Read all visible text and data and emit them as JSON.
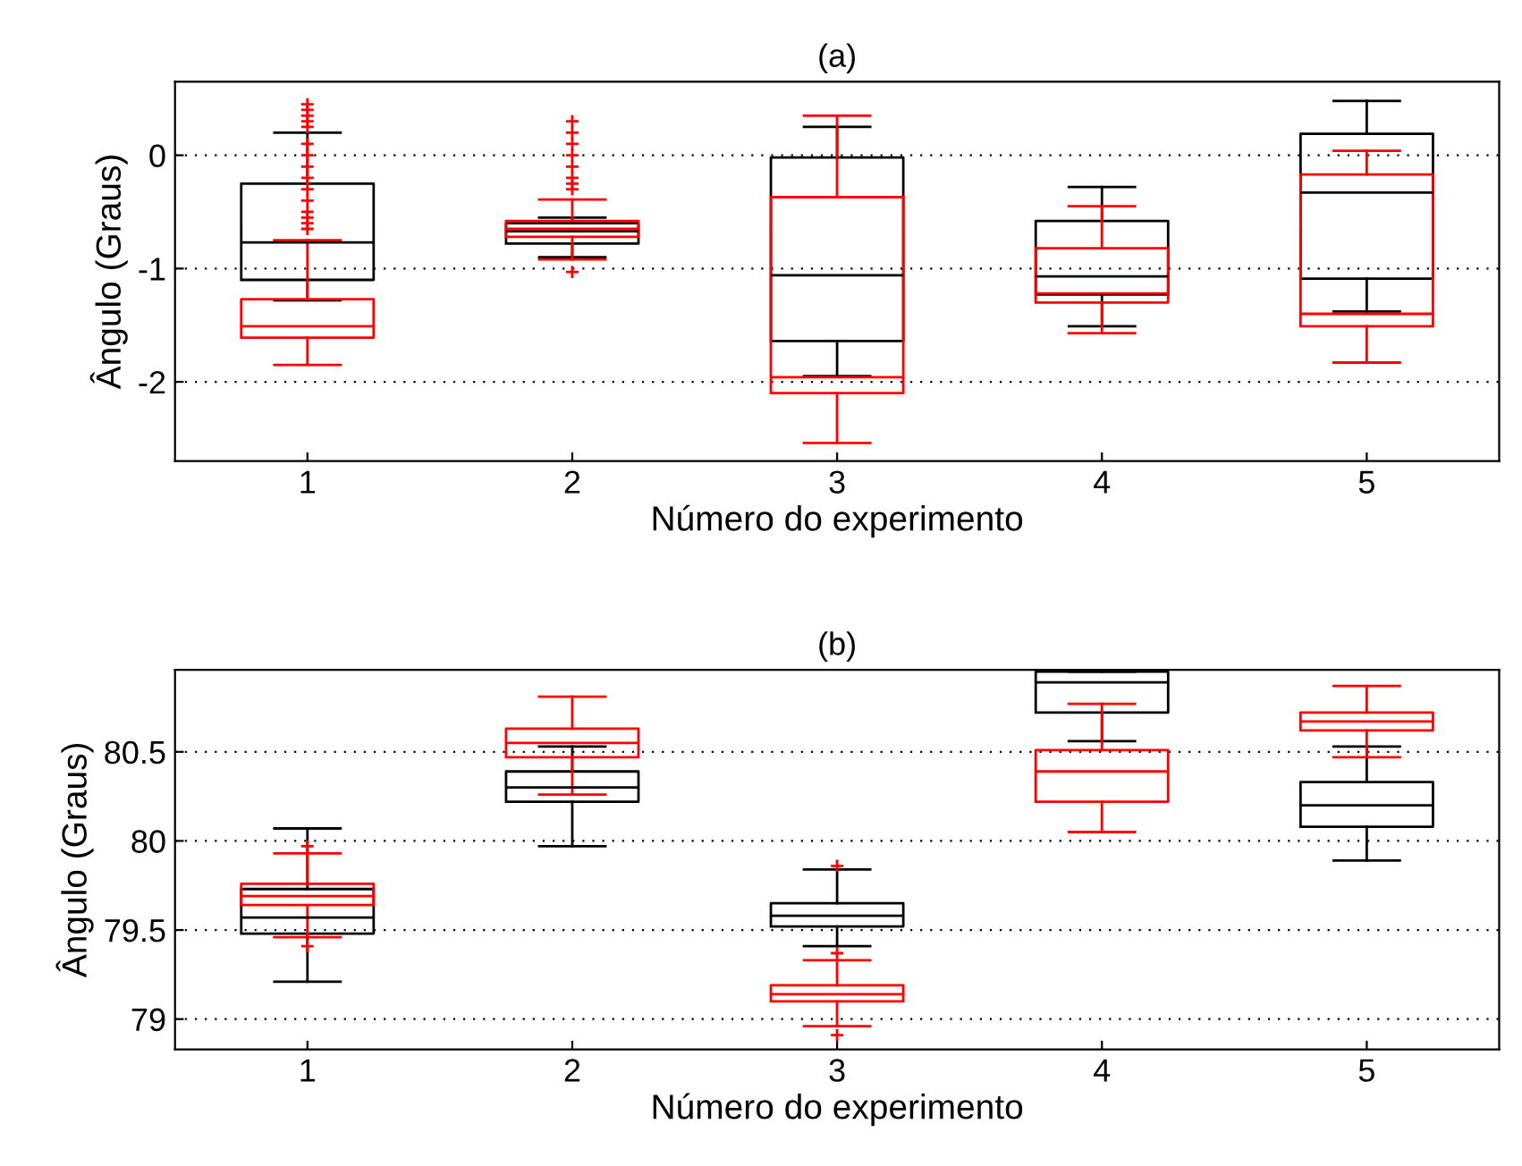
{
  "chart_data": [
    {
      "type": "box",
      "title": "(a)",
      "xlabel": "Número do experimento",
      "ylabel": "Ângulo (Graus)",
      "categories": [
        "1",
        "2",
        "3",
        "4",
        "5"
      ],
      "ylim": [
        -2.7,
        0.65
      ],
      "yticks": [
        -2,
        -1,
        0
      ],
      "grid": "y",
      "marker": "cross",
      "series": [
        {
          "color": "#000000",
          "boxes": [
            {
              "low": -1.28,
              "q1": -1.1,
              "median": -0.77,
              "q3": -0.25,
              "high": 0.2
            },
            {
              "low": -0.9,
              "q1": -0.78,
              "median": -0.67,
              "q3": -0.6,
              "high": -0.55
            },
            {
              "low": -1.95,
              "q1": -1.64,
              "median": -1.06,
              "q3": -0.02,
              "high": 0.25
            },
            {
              "low": -1.51,
              "q1": -1.23,
              "median": -1.07,
              "q3": -0.58,
              "high": -0.28
            },
            {
              "low": -1.38,
              "q1": -1.09,
              "median": -0.33,
              "q3": 0.19,
              "high": 0.48
            }
          ]
        },
        {
          "color": "#ff0000",
          "boxes": [
            {
              "low": -1.85,
              "q1": -1.61,
              "median": -1.51,
              "q3": -1.27,
              "high": -0.75,
              "outliers": [
                -0.65,
                -0.6,
                -0.55,
                -0.5,
                -0.4,
                -0.3,
                -0.2,
                -0.1,
                0,
                0.1,
                0.25,
                0.3,
                0.35,
                0.4,
                0.45
              ]
            },
            {
              "low": -0.92,
              "q1": -0.72,
              "median": -0.65,
              "q3": -0.58,
              "high": -0.39,
              "outliers": [
                -0.3,
                -0.25,
                -0.2,
                -0.1,
                0,
                0.1,
                0.2,
                0.3,
                -1.03
              ]
            },
            {
              "low": -2.54,
              "q1": -2.1,
              "median": -1.96,
              "q3": -0.37,
              "high": 0.35
            },
            {
              "low": -1.57,
              "q1": -1.3,
              "median": -1.22,
              "q3": -0.82,
              "high": -0.45
            },
            {
              "low": -1.83,
              "q1": -1.51,
              "median": -1.4,
              "q3": -0.17,
              "high": 0.04
            }
          ]
        }
      ]
    },
    {
      "type": "box",
      "title": "(b)",
      "xlabel": "Número do experimento",
      "ylabel": "Ângulo (Graus)",
      "categories": [
        "1",
        "2",
        "3",
        "4",
        "5"
      ],
      "ylim": [
        78.83,
        80.96
      ],
      "yticks": [
        79,
        79.5,
        80,
        80.5
      ],
      "grid": "y",
      "marker": "cross",
      "series": [
        {
          "color": "#000000",
          "boxes": [
            {
              "low": 79.21,
              "q1": 79.48,
              "median": 79.57,
              "q3": 79.73,
              "high": 80.07
            },
            {
              "low": 79.97,
              "q1": 80.22,
              "median": 80.3,
              "q3": 80.39,
              "high": 80.53
            },
            {
              "low": 79.41,
              "q1": 79.52,
              "median": 79.58,
              "q3": 79.65,
              "high": 79.84
            },
            {
              "low": 80.56,
              "q1": 80.72,
              "median": 80.89,
              "q3": 80.95,
              "high": 80.95
            },
            {
              "low": 79.89,
              "q1": 80.08,
              "median": 80.2,
              "q3": 80.33,
              "high": 80.53
            }
          ]
        },
        {
          "color": "#ff0000",
          "boxes": [
            {
              "low": 79.46,
              "q1": 79.64,
              "median": 79.69,
              "q3": 79.76,
              "high": 79.93,
              "outliers": [
                79.97,
                79.41
              ]
            },
            {
              "low": 80.26,
              "q1": 80.47,
              "median": 80.55,
              "q3": 80.63,
              "high": 80.81
            },
            {
              "low": 78.96,
              "q1": 79.1,
              "median": 79.14,
              "q3": 79.19,
              "high": 79.33,
              "outliers": [
                79.37,
                79.86,
                78.91
              ]
            },
            {
              "low": 80.05,
              "q1": 80.22,
              "median": 80.39,
              "q3": 80.51,
              "high": 80.77
            },
            {
              "low": 80.47,
              "q1": 80.62,
              "median": 80.67,
              "q3": 80.72,
              "high": 80.87
            }
          ]
        }
      ]
    }
  ]
}
